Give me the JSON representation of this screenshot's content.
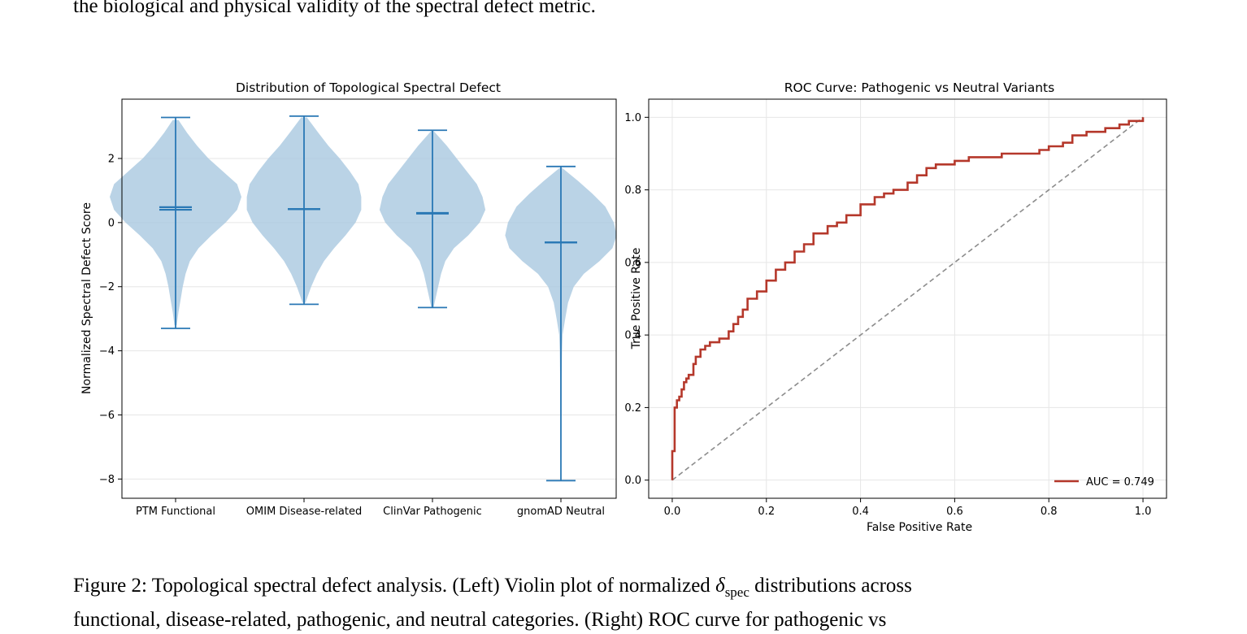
{
  "top_text": "the biological and physical validity of the spectral defect metric.",
  "caption": {
    "line1_a": "Figure 2: Topological spectral defect analysis. (Left) Violin plot of normalized ",
    "symbol": "δ",
    "subscript": "spec",
    "line1_b": " distributions across",
    "line2": "functional, disease-related, pathogenic, and neutral categories. (Right) ROC curve for pathogenic vs"
  },
  "colors": {
    "violin_fill": "#a9c8e0",
    "violin_line": "#2a78b5",
    "roc_line": "#b5382b",
    "diagonal": "#8c8c8c",
    "grid": "#e6e6e6"
  },
  "chart_data": [
    {
      "type": "violin",
      "title": "Distribution of Topological Spectral Defect",
      "xlabel": "",
      "ylabel": "Normalized Spectral Defect Score",
      "categories": [
        "PTM Functional",
        "OMIM Disease-related",
        "ClinVar Pathogenic",
        "gnomAD Neutral"
      ],
      "ylim": [
        -8.6,
        3.85
      ],
      "yticks": [
        2,
        0,
        -2,
        -4,
        -6,
        -8
      ],
      "ytick_labels": [
        "2",
        "0",
        "−2",
        "−4",
        "−6",
        "−8"
      ],
      "grid": true,
      "series": [
        {
          "name": "PTM Functional",
          "min": -3.3,
          "max": 3.28,
          "mean": 0.48,
          "median": 0.4
        },
        {
          "name": "OMIM Disease-related",
          "min": -2.55,
          "max": 3.32,
          "mean": 0.42,
          "median": 0.42
        },
        {
          "name": "ClinVar Pathogenic",
          "min": -2.65,
          "max": 2.88,
          "mean": 0.3,
          "median": 0.28
        },
        {
          "name": "gnomAD Neutral",
          "min": -8.05,
          "max": 1.75,
          "mean": -0.62,
          "median": -0.62
        }
      ],
      "profiles": [
        [
          [
            3.2,
            0.02
          ],
          [
            2.8,
            0.08
          ],
          [
            2.4,
            0.15
          ],
          [
            2.0,
            0.23
          ],
          [
            1.6,
            0.33
          ],
          [
            1.2,
            0.43
          ],
          [
            0.8,
            0.46
          ],
          [
            0.4,
            0.43
          ],
          [
            0.0,
            0.35
          ],
          [
            -0.4,
            0.25
          ],
          [
            -0.8,
            0.16
          ],
          [
            -1.2,
            0.1
          ],
          [
            -1.6,
            0.07
          ],
          [
            -2.0,
            0.05
          ],
          [
            -2.4,
            0.035
          ],
          [
            -2.8,
            0.02
          ],
          [
            -3.2,
            0.008
          ]
        ],
        [
          [
            3.28,
            0.02
          ],
          [
            2.8,
            0.1
          ],
          [
            2.4,
            0.17
          ],
          [
            2.0,
            0.25
          ],
          [
            1.6,
            0.32
          ],
          [
            1.2,
            0.38
          ],
          [
            0.8,
            0.4
          ],
          [
            0.4,
            0.4
          ],
          [
            0.0,
            0.36
          ],
          [
            -0.4,
            0.29
          ],
          [
            -0.8,
            0.21
          ],
          [
            -1.2,
            0.14
          ],
          [
            -1.6,
            0.09
          ],
          [
            -2.0,
            0.05
          ],
          [
            -2.5,
            0.01
          ]
        ],
        [
          [
            2.85,
            0.01
          ],
          [
            2.4,
            0.1
          ],
          [
            2.0,
            0.17
          ],
          [
            1.6,
            0.24
          ],
          [
            1.2,
            0.31
          ],
          [
            0.8,
            0.35
          ],
          [
            0.4,
            0.37
          ],
          [
            0.0,
            0.33
          ],
          [
            -0.4,
            0.25
          ],
          [
            -0.8,
            0.15
          ],
          [
            -1.2,
            0.09
          ],
          [
            -1.6,
            0.06
          ],
          [
            -2.0,
            0.04
          ],
          [
            -2.4,
            0.02
          ],
          [
            -2.65,
            0.008
          ]
        ],
        [
          [
            1.7,
            0.01
          ],
          [
            1.3,
            0.12
          ],
          [
            0.9,
            0.22
          ],
          [
            0.5,
            0.31
          ],
          [
            0.0,
            0.37
          ],
          [
            -0.4,
            0.39
          ],
          [
            -0.8,
            0.36
          ],
          [
            -1.2,
            0.27
          ],
          [
            -1.6,
            0.16
          ],
          [
            -2.0,
            0.09
          ],
          [
            -2.5,
            0.05
          ],
          [
            -3.0,
            0.03
          ],
          [
            -3.5,
            0.012
          ],
          [
            -4.0,
            0.008
          ],
          [
            -5.0,
            0.005
          ],
          [
            -6.5,
            0.004
          ],
          [
            -8.0,
            0.002
          ]
        ]
      ]
    },
    {
      "type": "line",
      "title": "ROC Curve: Pathogenic vs Neutral Variants",
      "xlabel": "False Positive Rate",
      "ylabel": "True Positive Rate",
      "xlim": [
        -0.05,
        1.05
      ],
      "ylim": [
        -0.05,
        1.05
      ],
      "xticks": [
        0.0,
        0.2,
        0.4,
        0.6,
        0.8,
        1.0
      ],
      "xtick_labels": [
        "0.0",
        "0.2",
        "0.4",
        "0.6",
        "0.8",
        "1.0"
      ],
      "yticks": [
        0.0,
        0.2,
        0.4,
        0.6,
        0.8,
        1.0
      ],
      "ytick_labels": [
        "0.0",
        "0.2",
        "0.4",
        "0.6",
        "0.8",
        "1.0"
      ],
      "grid": true,
      "legend": "lower-right",
      "series": [
        {
          "name": "AUC = 0.749",
          "x": [
            0.0,
            0.0,
            0.005,
            0.005,
            0.01,
            0.01,
            0.015,
            0.02,
            0.025,
            0.03,
            0.035,
            0.045,
            0.05,
            0.06,
            0.07,
            0.08,
            0.09,
            0.1,
            0.12,
            0.13,
            0.14,
            0.15,
            0.16,
            0.18,
            0.2,
            0.22,
            0.24,
            0.26,
            0.28,
            0.3,
            0.33,
            0.35,
            0.37,
            0.4,
            0.43,
            0.45,
            0.47,
            0.5,
            0.52,
            0.54,
            0.56,
            0.6,
            0.63,
            0.67,
            0.7,
            0.75,
            0.78,
            0.8,
            0.83,
            0.85,
            0.88,
            0.9,
            0.92,
            0.95,
            0.97,
            1.0
          ],
          "y": [
            0.0,
            0.08,
            0.08,
            0.2,
            0.21,
            0.22,
            0.23,
            0.25,
            0.27,
            0.28,
            0.29,
            0.32,
            0.34,
            0.36,
            0.37,
            0.38,
            0.38,
            0.39,
            0.41,
            0.43,
            0.45,
            0.47,
            0.5,
            0.52,
            0.55,
            0.58,
            0.6,
            0.63,
            0.65,
            0.68,
            0.7,
            0.71,
            0.73,
            0.76,
            0.78,
            0.79,
            0.8,
            0.82,
            0.84,
            0.86,
            0.87,
            0.88,
            0.89,
            0.89,
            0.9,
            0.9,
            0.91,
            0.92,
            0.93,
            0.95,
            0.96,
            0.96,
            0.97,
            0.98,
            0.99,
            1.0
          ]
        },
        {
          "name": "",
          "x": [
            0.0,
            1.0
          ],
          "y": [
            0.0,
            1.0
          ]
        }
      ]
    }
  ]
}
